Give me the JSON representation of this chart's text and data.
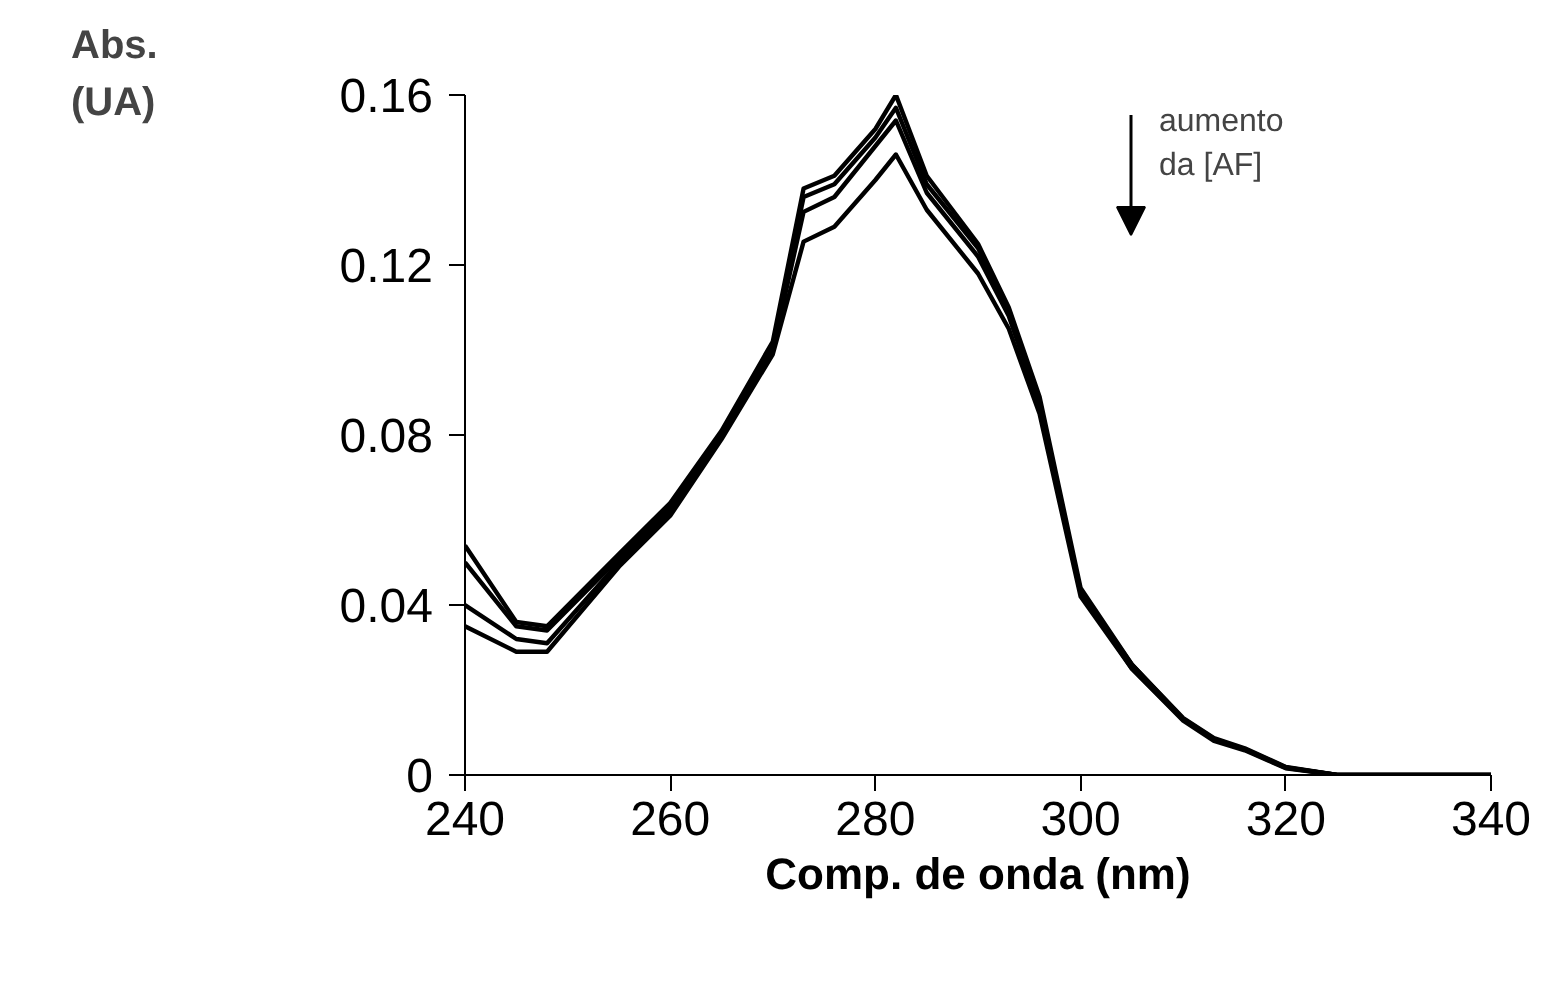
{
  "chart_data": {
    "type": "line",
    "xlabel": "Comp. de onda (nm)",
    "ylabel": "Abs.\n(UA)",
    "annotations": [
      "aumento\nda [AF]"
    ],
    "x": [
      240,
      245,
      248,
      255,
      260,
      265,
      270,
      273,
      276,
      280,
      282,
      285,
      290,
      293,
      296,
      300,
      305,
      310,
      313,
      316,
      320,
      325,
      330,
      340
    ],
    "series": [
      {
        "color": "#000000",
        "values": [
          0.054,
          0.036,
          0.035,
          0.052,
          0.064,
          0.081,
          0.102,
          0.138,
          0.141,
          0.152,
          0.16,
          0.141,
          0.125,
          0.11,
          0.089,
          0.044,
          0.026,
          0.0134,
          0.0087,
          0.0063,
          0.0019,
          0,
          0,
          0
        ]
      },
      {
        "color": "#000000",
        "values": [
          0.05,
          0.035,
          0.034,
          0.051,
          0.063,
          0.08,
          0.101,
          0.136,
          0.139,
          0.15,
          0.157,
          0.139,
          0.124,
          0.109,
          0.088,
          0.043,
          0.026,
          0.0132,
          0.0085,
          0.0061,
          0.0018,
          0,
          0,
          0
        ]
      },
      {
        "color": "#000000",
        "values": [
          0.04,
          0.032,
          0.031,
          0.05,
          0.062,
          0.08,
          0.1,
          0.1325,
          0.136,
          0.148,
          0.154,
          0.137,
          0.122,
          0.108,
          0.087,
          0.043,
          0.025,
          0.013,
          0.0083,
          0.006,
          0.0017,
          0,
          0,
          0
        ]
      },
      {
        "color": "#000000",
        "values": [
          0.035,
          0.029,
          0.029,
          0.049,
          0.061,
          0.079,
          0.099,
          0.1255,
          0.129,
          0.14,
          0.146,
          0.133,
          0.118,
          0.105,
          0.085,
          0.042,
          0.025,
          0.0128,
          0.008,
          0.0058,
          0.0016,
          0,
          0,
          0
        ]
      }
    ],
    "xlim": [
      240,
      340
    ],
    "ylim": [
      0,
      0.16
    ],
    "xticks": [
      240,
      260,
      280,
      300,
      320,
      340
    ],
    "yticks": [
      0,
      0.04,
      0.08,
      0.12,
      0.16
    ],
    "grid": false
  }
}
